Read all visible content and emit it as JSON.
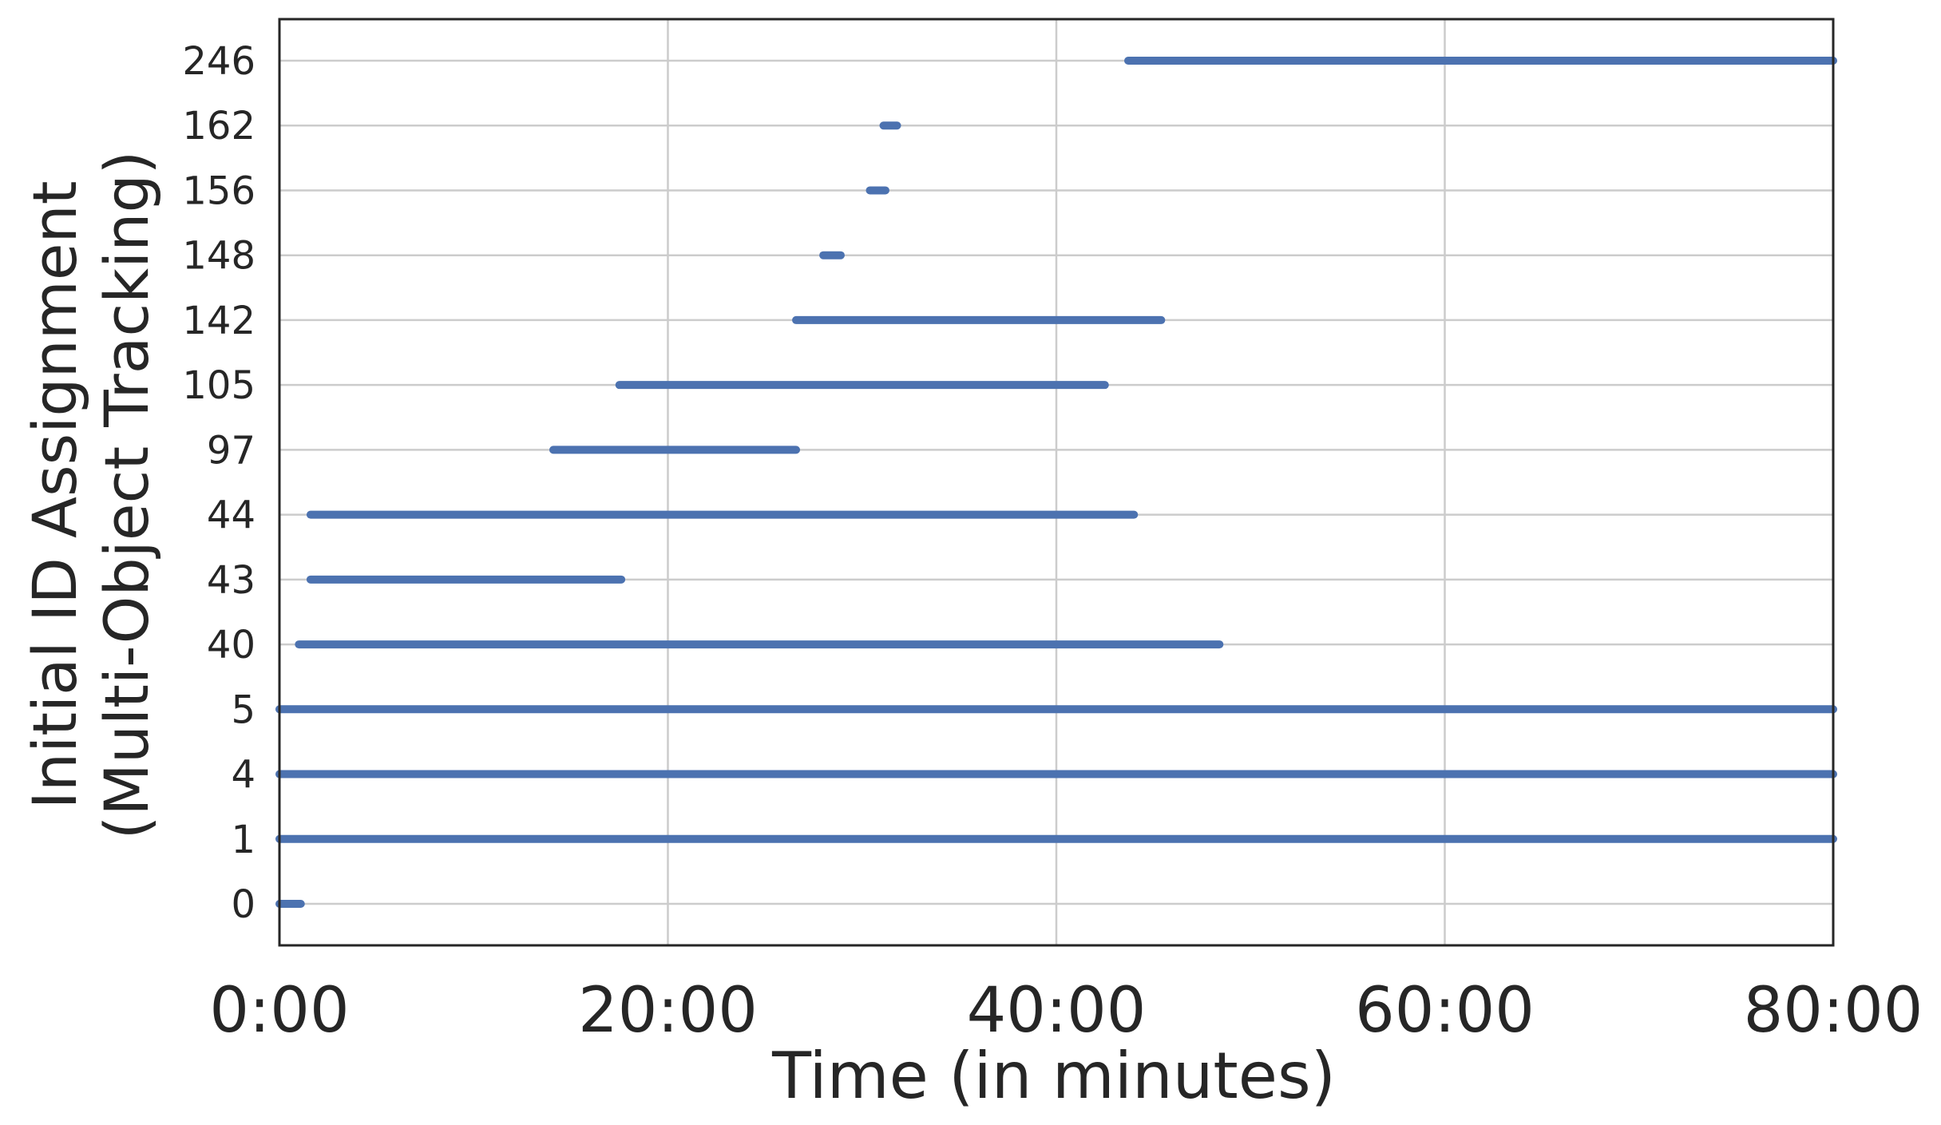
{
  "chart_data": {
    "type": "timeline",
    "xlabel": "Time (in minutes)",
    "ylabel_lines": [
      "Initial ID Assignment",
      "(Multi-Object Tracking)"
    ],
    "x_unit": "minutes",
    "xlim": [
      0,
      80
    ],
    "x_ticks": [
      0,
      20,
      40,
      60,
      80
    ],
    "x_tick_labels": [
      "0:00",
      "20:00",
      "40:00",
      "60:00",
      "80:00"
    ],
    "grid": true,
    "series_color": "#4c72b0",
    "categories": [
      "0",
      "1",
      "4",
      "5",
      "40",
      "43",
      "44",
      "97",
      "105",
      "142",
      "148",
      "156",
      "162",
      "246"
    ],
    "segments": [
      {
        "id": "0",
        "start": 0,
        "end": 1.1
      },
      {
        "id": "1",
        "start": 0,
        "end": 80
      },
      {
        "id": "4",
        "start": 0,
        "end": 80
      },
      {
        "id": "5",
        "start": 0,
        "end": 80
      },
      {
        "id": "40",
        "start": 1.0,
        "end": 48.4
      },
      {
        "id": "43",
        "start": 1.6,
        "end": 17.6
      },
      {
        "id": "44",
        "start": 1.6,
        "end": 44.0
      },
      {
        "id": "97",
        "start": 14.1,
        "end": 26.6
      },
      {
        "id": "105",
        "start": 17.5,
        "end": 42.5
      },
      {
        "id": "142",
        "start": 26.6,
        "end": 45.4
      },
      {
        "id": "148",
        "start": 28.0,
        "end": 28.9
      },
      {
        "id": "156",
        "start": 30.4,
        "end": 31.2
      },
      {
        "id": "162",
        "start": 31.1,
        "end": 31.8
      },
      {
        "id": "246",
        "start": 43.7,
        "end": 80
      }
    ]
  }
}
